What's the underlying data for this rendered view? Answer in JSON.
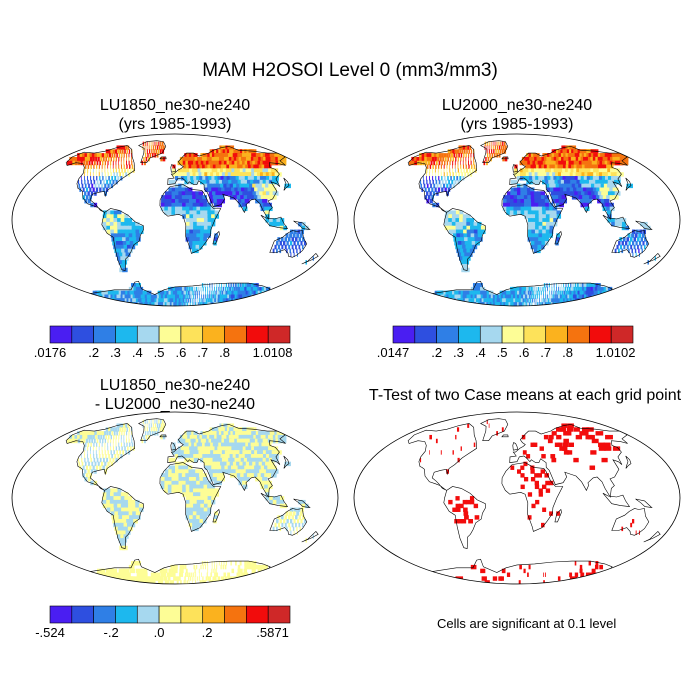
{
  "title": "MAM H2OSOI Level 0 (mm3/mm3)",
  "panels": [
    {
      "id": "tl",
      "title_line1": "LU1850_ne30-ne240",
      "title_line2": "(yrs 1985-1993)",
      "style": "abs"
    },
    {
      "id": "tr",
      "title_line1": "LU2000_ne30-ne240",
      "title_line2": "(yrs 1985-1993)",
      "style": "abs"
    },
    {
      "id": "bl",
      "title_line1": "LU1850_ne30-ne240",
      "title_line2": "- LU2000_ne30-ne240",
      "style": "diff"
    },
    {
      "id": "br",
      "title_line1": "T-Test of two Case means at each grid point",
      "title_line2": "",
      "style": "sig"
    }
  ],
  "colorbars": [
    {
      "id": "cb1",
      "colors": [
        "#4a1ef2",
        "#2e4fe0",
        "#2f7fe6",
        "#1db8ee",
        "#a6d8ef",
        "#fdfd96",
        "#fde25a",
        "#fbb21e",
        "#f5730f",
        "#f20c0c",
        "#cf2828"
      ],
      "labels": [
        ".0176",
        ".2",
        ".3",
        ".4",
        ".5",
        ".6",
        ".7",
        ".8",
        "1.0108"
      ]
    },
    {
      "id": "cb2",
      "colors": [
        "#4a1ef2",
        "#2e4fe0",
        "#2f7fe6",
        "#1db8ee",
        "#a6d8ef",
        "#fdfd96",
        "#fde25a",
        "#fbb21e",
        "#f5730f",
        "#f20c0c",
        "#cf2828"
      ],
      "labels": [
        ".0147",
        ".2",
        ".3",
        ".4",
        ".5",
        ".6",
        ".7",
        ".8",
        "1.0102"
      ]
    },
    {
      "id": "cb3",
      "colors": [
        "#4a1ef2",
        "#2e4fe0",
        "#2f7fe6",
        "#1db8ee",
        "#a6d8ef",
        "#fdfd96",
        "#fde25a",
        "#fbb21e",
        "#f5730f",
        "#f20c0c",
        "#cf2828"
      ],
      "labels": [
        "-.524",
        "-.2",
        ".0",
        ".2",
        ".5871"
      ]
    }
  ],
  "significance_note": "Cells are significant at 0.1 level"
}
